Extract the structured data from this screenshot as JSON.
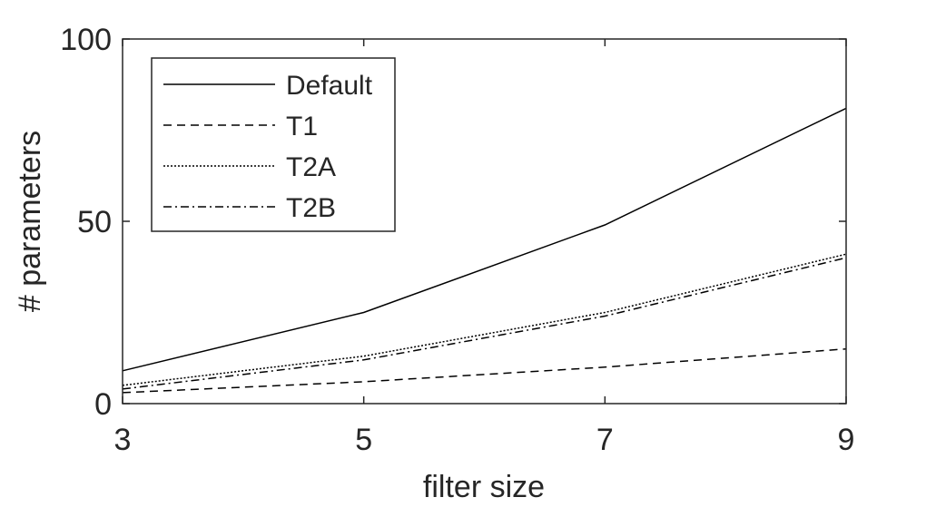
{
  "chart_data": {
    "type": "line",
    "title": "",
    "xlabel": "filter size",
    "ylabel": "# parameters",
    "x": [
      3,
      5,
      7,
      9
    ],
    "xlim": [
      3,
      9
    ],
    "ylim": [
      0,
      100
    ],
    "xticks": [
      3,
      5,
      7,
      9
    ],
    "yticks": [
      0,
      50,
      100
    ],
    "grid": false,
    "legend_position": "top-left",
    "series": [
      {
        "name": "Default",
        "values": [
          9,
          25,
          49,
          81
        ],
        "style": "solid"
      },
      {
        "name": "T1",
        "values": [
          3,
          6,
          10,
          15
        ],
        "style": "dashed"
      },
      {
        "name": "T2A",
        "values": [
          5,
          13,
          25,
          41
        ],
        "style": "dotted"
      },
      {
        "name": "T2B",
        "values": [
          4,
          12,
          24,
          40
        ],
        "style": "dashdot"
      }
    ]
  }
}
